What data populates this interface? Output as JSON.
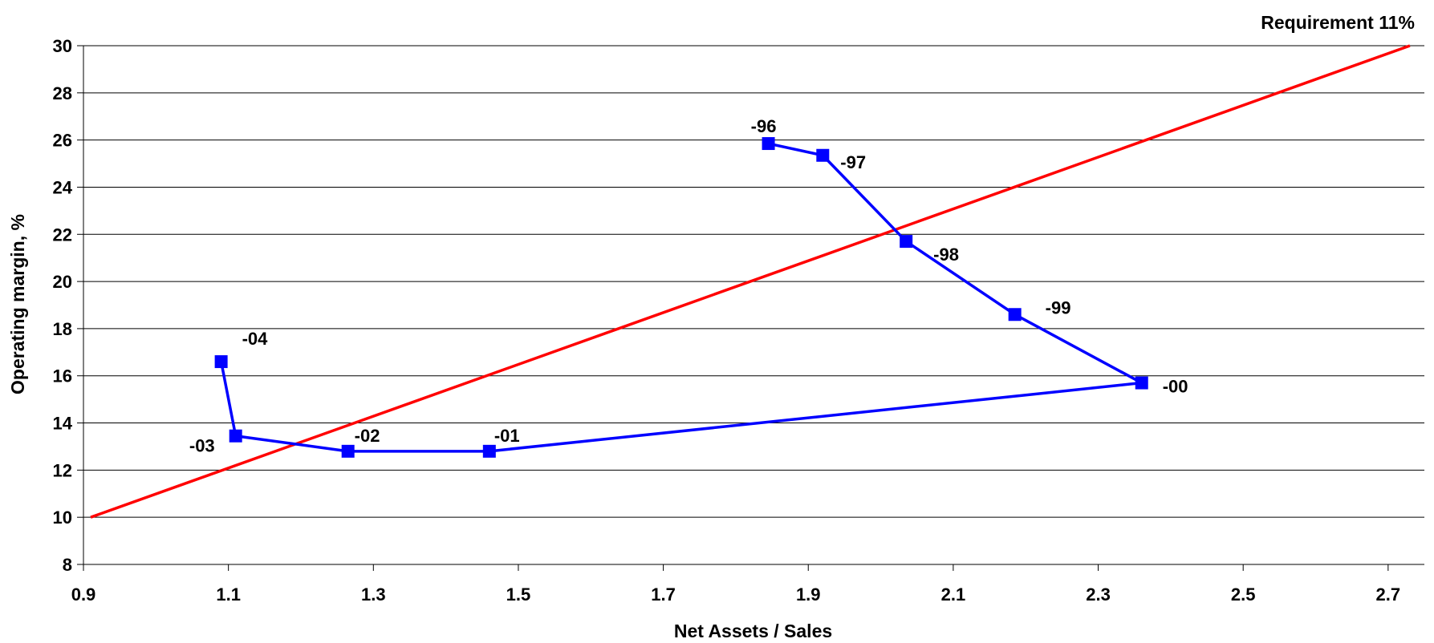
{
  "chart_data": {
    "type": "line",
    "xlabel": "Net Assets / Sales",
    "ylabel": "Operating margin, %",
    "xlim": [
      0.9,
      2.75
    ],
    "ylim": [
      8,
      30
    ],
    "xticks": [
      "0.9",
      "1.1",
      "1.3",
      "1.5",
      "1.7",
      "1.9",
      "2.1",
      "2.3",
      "2.5",
      "2.7"
    ],
    "yticks": [
      "8",
      "10",
      "12",
      "14",
      "16",
      "18",
      "20",
      "22",
      "24",
      "26",
      "28",
      "30"
    ],
    "grid": "horizontal",
    "series": [
      {
        "color": "#0000ff",
        "marker": "square",
        "points": [
          {
            "label": "-96",
            "x": 1.845,
            "y": 25.85
          },
          {
            "label": "-97",
            "x": 1.92,
            "y": 25.35
          },
          {
            "label": "-98",
            "x": 2.035,
            "y": 21.7
          },
          {
            "label": "-99",
            "x": 2.185,
            "y": 18.6
          },
          {
            "label": "-00",
            "x": 2.36,
            "y": 15.7
          },
          {
            "label": "-01",
            "x": 1.46,
            "y": 12.8
          },
          {
            "label": "-02",
            "x": 1.265,
            "y": 12.8
          },
          {
            "label": "-03",
            "x": 1.11,
            "y": 13.45
          },
          {
            "label": "-04",
            "x": 1.09,
            "y": 16.6
          }
        ]
      },
      {
        "name": "Requirement 11%",
        "color": "#ff0000",
        "points": [
          {
            "x": 0.91,
            "y": 10
          },
          {
            "x": 2.73,
            "y": 30
          }
        ]
      }
    ]
  }
}
